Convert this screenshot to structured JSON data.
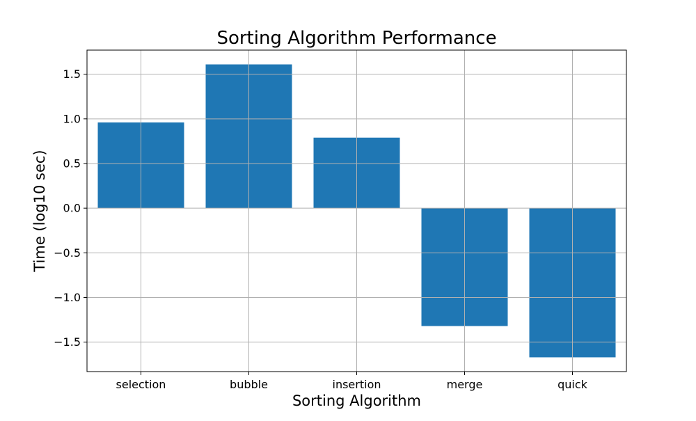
{
  "chart_data": {
    "type": "bar",
    "title": "Sorting Algorithm Performance",
    "xlabel": "Sorting Algorithm",
    "ylabel": "Time (log10 sec)",
    "categories": [
      "selection",
      "bubble",
      "insertion",
      "merge",
      "quick"
    ],
    "values": [
      0.96,
      1.61,
      0.79,
      -1.32,
      -1.67
    ],
    "ylim": [
      -1.83,
      1.77
    ],
    "yticks": [
      -1.5,
      -1.0,
      -0.5,
      0.0,
      0.5,
      1.0,
      1.5
    ],
    "ytick_labels": [
      "−1.5",
      "−1.0",
      "−0.5",
      "0.0",
      "0.5",
      "1.0",
      "1.5"
    ],
    "grid": true,
    "bar_color": "#1f77b4",
    "grid_color": "#b0b0b0"
  }
}
